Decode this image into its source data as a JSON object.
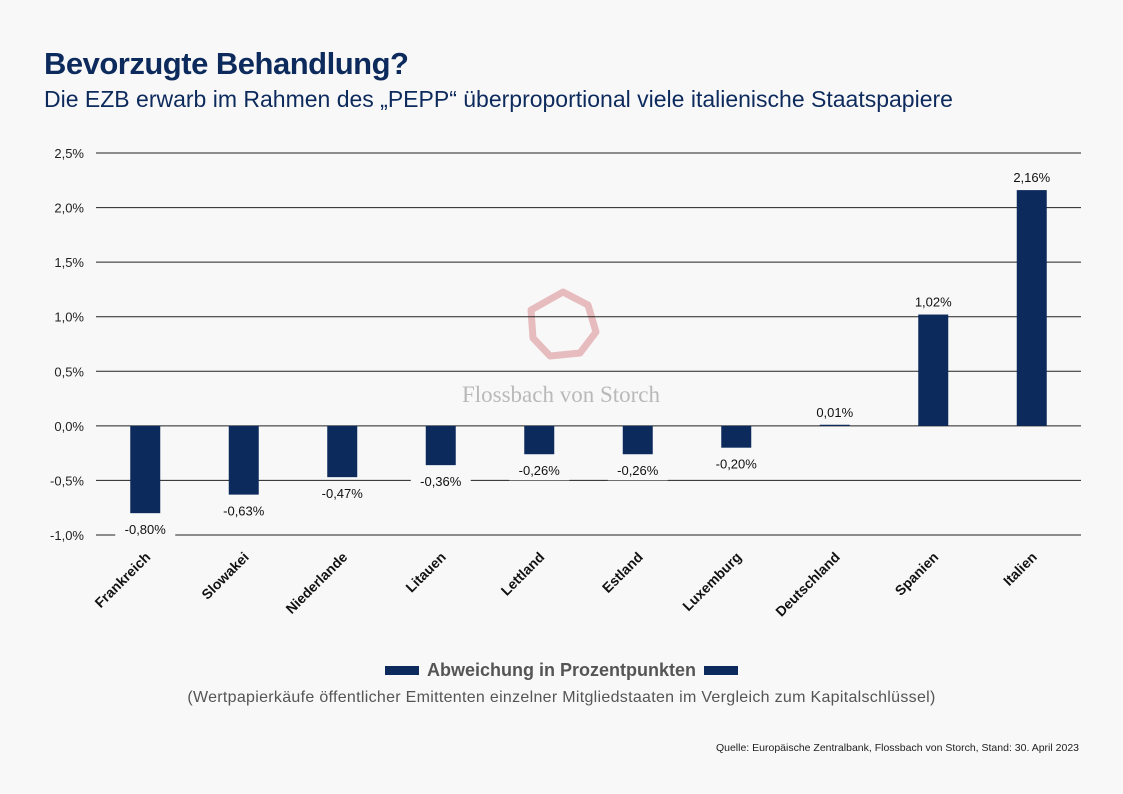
{
  "header": {
    "title": "Bevorzugte Behandlung?",
    "subtitle": "Die EZB erwarb im Rahmen des „PEPP“ überproportional viele italienische Staatspapiere"
  },
  "watermark": {
    "text": "Flossbach von Storch"
  },
  "legend": {
    "label": "Abweichung in Prozentpunkten",
    "note": "(Wertpapierkäufe öffentlicher Emittenten einzelner Mitgliedstaaten im Vergleich zum Kapitalschlüssel)"
  },
  "source": "Quelle: Europäische Zentralbank, Flossbach von Storch, Stand: 30. April 2023",
  "colors": {
    "bar": "#0d2a5c",
    "grid": "#222222",
    "watermark": "#e2a8aa"
  },
  "chart_data": {
    "type": "bar",
    "title": "Bevorzugte Behandlung?",
    "xlabel": "",
    "ylabel": "",
    "categories": [
      "Frankreich",
      "Slowakei",
      "Niederlande",
      "Litauen",
      "Lettland",
      "Estland",
      "Luxemburg",
      "Deutschland",
      "Spanien",
      "Italien"
    ],
    "values": [
      -0.8,
      -0.63,
      -0.47,
      -0.36,
      -0.26,
      -0.26,
      -0.2,
      0.01,
      1.02,
      2.16
    ],
    "value_labels": [
      "-0,80%",
      "-0,63%",
      "-0,47%",
      "-0,36%",
      "-0,26%",
      "-0,26%",
      "-0,20%",
      "0,01%",
      "1,02%",
      "2,16%"
    ],
    "yticks": [
      2.5,
      2.0,
      1.5,
      1.0,
      0.5,
      0.0,
      -0.5,
      -1.0
    ],
    "ytick_labels": [
      "2,5%",
      "2,0%",
      "1,5%",
      "1,0%",
      "0,5%",
      "0,0%",
      "-0,5%",
      "-1,0%"
    ],
    "ylim": [
      -1.0,
      2.5
    ],
    "grid": true,
    "legend": "bottom-center"
  }
}
